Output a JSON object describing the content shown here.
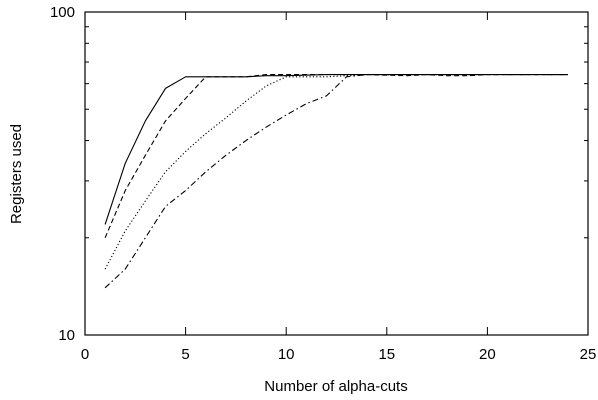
{
  "chart_data": {
    "type": "line",
    "title": "",
    "xlabel": "Number of alpha-cuts",
    "ylabel": "Registers used",
    "xlim": [
      0,
      25
    ],
    "ylim": [
      10,
      100
    ],
    "y_scale": "log",
    "grid": false,
    "legend": "none",
    "x_ticks": [
      {
        "value": 0,
        "label": "0"
      },
      {
        "value": 5,
        "label": "5"
      },
      {
        "value": 10,
        "label": "10"
      },
      {
        "value": 15,
        "label": "15"
      },
      {
        "value": 20,
        "label": "20"
      },
      {
        "value": 25,
        "label": "25"
      }
    ],
    "y_ticks_labeled": [
      {
        "value": 10,
        "label": "10"
      },
      {
        "value": 100,
        "label": "100"
      }
    ],
    "y_minor_ticks": [
      20,
      30,
      40,
      50,
      60,
      70,
      80,
      90
    ],
    "series": [
      {
        "style": "solid",
        "x": [
          1,
          2,
          3,
          4,
          5,
          6,
          7,
          8,
          9,
          10,
          12,
          14,
          16,
          18,
          20,
          22,
          24
        ],
        "y": [
          22,
          34,
          46,
          58,
          63,
          63,
          63,
          63,
          63.5,
          63.5,
          64,
          64,
          64,
          64,
          64,
          64,
          64
        ]
      },
      {
        "style": "dashed",
        "x": [
          1,
          2,
          3,
          4,
          5,
          6,
          7,
          8,
          9,
          10,
          12,
          14,
          16,
          17,
          18,
          19,
          20,
          22,
          24
        ],
        "y": [
          20,
          28,
          36,
          46,
          54,
          63,
          63,
          63,
          64,
          64,
          64,
          64,
          63.5,
          64,
          63.5,
          63.5,
          64,
          64,
          64
        ]
      },
      {
        "style": "dotted",
        "x": [
          1,
          2,
          3,
          4,
          5,
          6,
          7,
          8,
          9,
          10,
          12,
          14,
          16,
          18,
          20,
          22,
          24
        ],
        "y": [
          16,
          21,
          26,
          32,
          37,
          42,
          47,
          53,
          59,
          63,
          63,
          64,
          64,
          64,
          64,
          64,
          64
        ]
      },
      {
        "style": "dash-dot",
        "x": [
          1,
          2,
          3,
          4,
          5,
          6,
          7,
          8,
          9,
          10,
          11,
          12,
          13,
          14,
          16,
          18,
          20,
          22,
          24
        ],
        "y": [
          14,
          16,
          20,
          25,
          28,
          32,
          36,
          40,
          44,
          48,
          52,
          55,
          63,
          64,
          64,
          64,
          64,
          64,
          64
        ]
      }
    ]
  }
}
